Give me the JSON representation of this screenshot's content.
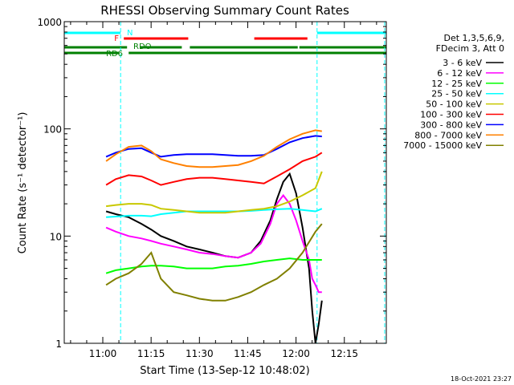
{
  "chart_data": {
    "type": "line",
    "title": "RHESSI Observing Summary Count Rates",
    "xlabel": "Start Time (13-Sep-12 10:48:02)",
    "ylabel": "Count Rate (s⁻¹ detector⁻¹)",
    "yscale": "log",
    "ylim": [
      1,
      1000
    ],
    "xlim_minutes": [
      0,
      100
    ],
    "x_unit": "minutes after 10:48:02",
    "x_ticks": [
      {
        "label": "11:00",
        "t": 11.97
      },
      {
        "label": "11:15",
        "t": 26.97
      },
      {
        "label": "11:30",
        "t": 41.97
      },
      {
        "label": "11:45",
        "t": 56.97
      },
      {
        "label": "12:00",
        "t": 71.97
      },
      {
        "label": "12:15",
        "t": 86.97
      }
    ],
    "y_ticks": [
      {
        "label": "1",
        "v": 1
      },
      {
        "label": "10",
        "v": 10
      },
      {
        "label": "100",
        "v": 100
      },
      {
        "label": "1000",
        "v": 1000
      }
    ],
    "legend_title": [
      "Det 1,3,5,6,9,",
      "FDecim 3, Att 0"
    ],
    "legend_position": "right",
    "timestamp": "18-Oct-2021 23:27",
    "series": [
      {
        "name": "3 - 6 keV",
        "color": "#000000",
        "points": [
          [
            13,
            17
          ],
          [
            16,
            16
          ],
          [
            20,
            15
          ],
          [
            24,
            13
          ],
          [
            27,
            11.5
          ],
          [
            30,
            10
          ],
          [
            34,
            9
          ],
          [
            38,
            8
          ],
          [
            42,
            7.5
          ],
          [
            46,
            7
          ],
          [
            50,
            6.5
          ],
          [
            54,
            6.3
          ],
          [
            58,
            7
          ],
          [
            61,
            9
          ],
          [
            64,
            14
          ],
          [
            66,
            22
          ],
          [
            68,
            32
          ],
          [
            70,
            38
          ],
          [
            72,
            25
          ],
          [
            74,
            12
          ],
          [
            76,
            5
          ],
          [
            77,
            2
          ],
          [
            78,
            1
          ],
          [
            79,
            1.5
          ],
          [
            80,
            2.5
          ]
        ]
      },
      {
        "name": "6 - 12 keV",
        "color": "#ff00ff",
        "points": [
          [
            13,
            12
          ],
          [
            16,
            11
          ],
          [
            20,
            10
          ],
          [
            24,
            9.5
          ],
          [
            27,
            9
          ],
          [
            30,
            8.5
          ],
          [
            34,
            8
          ],
          [
            38,
            7.5
          ],
          [
            42,
            7
          ],
          [
            46,
            6.8
          ],
          [
            50,
            6.5
          ],
          [
            54,
            6.3
          ],
          [
            58,
            7
          ],
          [
            61,
            8.5
          ],
          [
            64,
            13
          ],
          [
            66,
            20
          ],
          [
            68,
            24
          ],
          [
            70,
            20
          ],
          [
            72,
            14
          ],
          [
            74,
            9
          ],
          [
            76,
            6
          ],
          [
            77,
            4
          ],
          [
            78,
            3.5
          ],
          [
            79,
            3
          ],
          [
            80,
            3
          ]
        ]
      },
      {
        "name": "12 - 25 keV",
        "color": "#00ff00",
        "points": [
          [
            13,
            4.5
          ],
          [
            16,
            4.8
          ],
          [
            20,
            5
          ],
          [
            24,
            5.2
          ],
          [
            27,
            5.3
          ],
          [
            30,
            5.3
          ],
          [
            34,
            5.2
          ],
          [
            38,
            5
          ],
          [
            42,
            5
          ],
          [
            46,
            5
          ],
          [
            50,
            5.2
          ],
          [
            54,
            5.3
          ],
          [
            58,
            5.5
          ],
          [
            62,
            5.8
          ],
          [
            66,
            6
          ],
          [
            70,
            6.2
          ],
          [
            74,
            6
          ],
          [
            78,
            6
          ],
          [
            80,
            6
          ]
        ]
      },
      {
        "name": "25 - 50 keV",
        "color": "#00ffff",
        "points": [
          [
            13,
            15
          ],
          [
            16,
            15.2
          ],
          [
            20,
            15.5
          ],
          [
            24,
            15.5
          ],
          [
            27,
            15.3
          ],
          [
            30,
            16
          ],
          [
            34,
            16.5
          ],
          [
            38,
            17
          ],
          [
            42,
            17
          ],
          [
            46,
            17
          ],
          [
            50,
            17
          ],
          [
            54,
            17
          ],
          [
            58,
            17.2
          ],
          [
            62,
            17.5
          ],
          [
            66,
            17.8
          ],
          [
            70,
            18
          ],
          [
            74,
            17.5
          ],
          [
            78,
            17
          ],
          [
            80,
            18
          ]
        ]
      },
      {
        "name": "50 - 100 keV",
        "color": "#c8c800",
        "points": [
          [
            13,
            19
          ],
          [
            16,
            19.5
          ],
          [
            20,
            20
          ],
          [
            24,
            20
          ],
          [
            27,
            19.5
          ],
          [
            30,
            18
          ],
          [
            34,
            17.5
          ],
          [
            38,
            17
          ],
          [
            42,
            16.5
          ],
          [
            46,
            16.5
          ],
          [
            50,
            16.5
          ],
          [
            54,
            17
          ],
          [
            58,
            17.5
          ],
          [
            62,
            18
          ],
          [
            66,
            19
          ],
          [
            70,
            21
          ],
          [
            74,
            24
          ],
          [
            78,
            28
          ],
          [
            80,
            40
          ]
        ]
      },
      {
        "name": "100 - 300 keV",
        "color": "#ff0000",
        "points": [
          [
            13,
            30
          ],
          [
            16,
            34
          ],
          [
            20,
            37
          ],
          [
            24,
            36
          ],
          [
            27,
            33
          ],
          [
            30,
            30
          ],
          [
            34,
            32
          ],
          [
            38,
            34
          ],
          [
            42,
            35
          ],
          [
            46,
            35
          ],
          [
            50,
            34
          ],
          [
            54,
            33
          ],
          [
            58,
            32
          ],
          [
            62,
            31
          ],
          [
            66,
            36
          ],
          [
            70,
            42
          ],
          [
            74,
            50
          ],
          [
            78,
            55
          ],
          [
            80,
            60
          ]
        ]
      },
      {
        "name": "300 - 800 keV",
        "color": "#0000ff",
        "points": [
          [
            13,
            55
          ],
          [
            16,
            60
          ],
          [
            20,
            65
          ],
          [
            24,
            66
          ],
          [
            27,
            60
          ],
          [
            30,
            55
          ],
          [
            34,
            57
          ],
          [
            38,
            58
          ],
          [
            42,
            58
          ],
          [
            46,
            58
          ],
          [
            50,
            57
          ],
          [
            54,
            56
          ],
          [
            58,
            56
          ],
          [
            62,
            57
          ],
          [
            66,
            65
          ],
          [
            70,
            75
          ],
          [
            74,
            82
          ],
          [
            78,
            86
          ],
          [
            80,
            85
          ]
        ]
      },
      {
        "name": "800 - 7000 keV",
        "color": "#ff8000",
        "points": [
          [
            13,
            50
          ],
          [
            16,
            58
          ],
          [
            20,
            68
          ],
          [
            24,
            70
          ],
          [
            27,
            62
          ],
          [
            30,
            52
          ],
          [
            34,
            48
          ],
          [
            38,
            45
          ],
          [
            42,
            44
          ],
          [
            46,
            44
          ],
          [
            50,
            45
          ],
          [
            54,
            46
          ],
          [
            58,
            50
          ],
          [
            62,
            56
          ],
          [
            66,
            68
          ],
          [
            70,
            80
          ],
          [
            74,
            90
          ],
          [
            78,
            97
          ],
          [
            80,
            95
          ]
        ]
      },
      {
        "name": "7000 - 15000 keV",
        "color": "#808000",
        "points": [
          [
            13,
            3.5
          ],
          [
            16,
            4
          ],
          [
            20,
            4.5
          ],
          [
            24,
            5.5
          ],
          [
            27,
            7
          ],
          [
            30,
            4
          ],
          [
            34,
            3
          ],
          [
            38,
            2.8
          ],
          [
            42,
            2.6
          ],
          [
            46,
            2.5
          ],
          [
            50,
            2.5
          ],
          [
            54,
            2.7
          ],
          [
            58,
            3
          ],
          [
            62,
            3.5
          ],
          [
            66,
            4
          ],
          [
            70,
            5
          ],
          [
            74,
            7
          ],
          [
            78,
            11
          ],
          [
            80,
            13
          ]
        ]
      }
    ],
    "flags": [
      {
        "label": "N",
        "color": "#00ffff",
        "segments": [
          [
            0,
            17.5
          ],
          [
            78.5,
            100
          ]
        ]
      },
      {
        "label": "F",
        "color": "#ff0000",
        "segments": [
          [
            18.5,
            38.5
          ],
          [
            59,
            75.5
          ]
        ]
      },
      {
        "label": "RDO",
        "color": "#008000",
        "segments": [
          [
            0,
            19.5
          ],
          [
            23.5,
            36.5
          ],
          [
            39,
            72.5
          ],
          [
            73,
            100
          ]
        ]
      },
      {
        "label": "RD6",
        "color": "#008000",
        "segments": [
          [
            0,
            17
          ],
          [
            20,
            100
          ]
        ]
      }
    ],
    "vertical_markers": [
      {
        "color": "#00ffff",
        "t": 17.5
      },
      {
        "color": "#00ffff",
        "t": 78.5
      },
      {
        "color": "#00ffff",
        "t": 99.5
      }
    ]
  }
}
